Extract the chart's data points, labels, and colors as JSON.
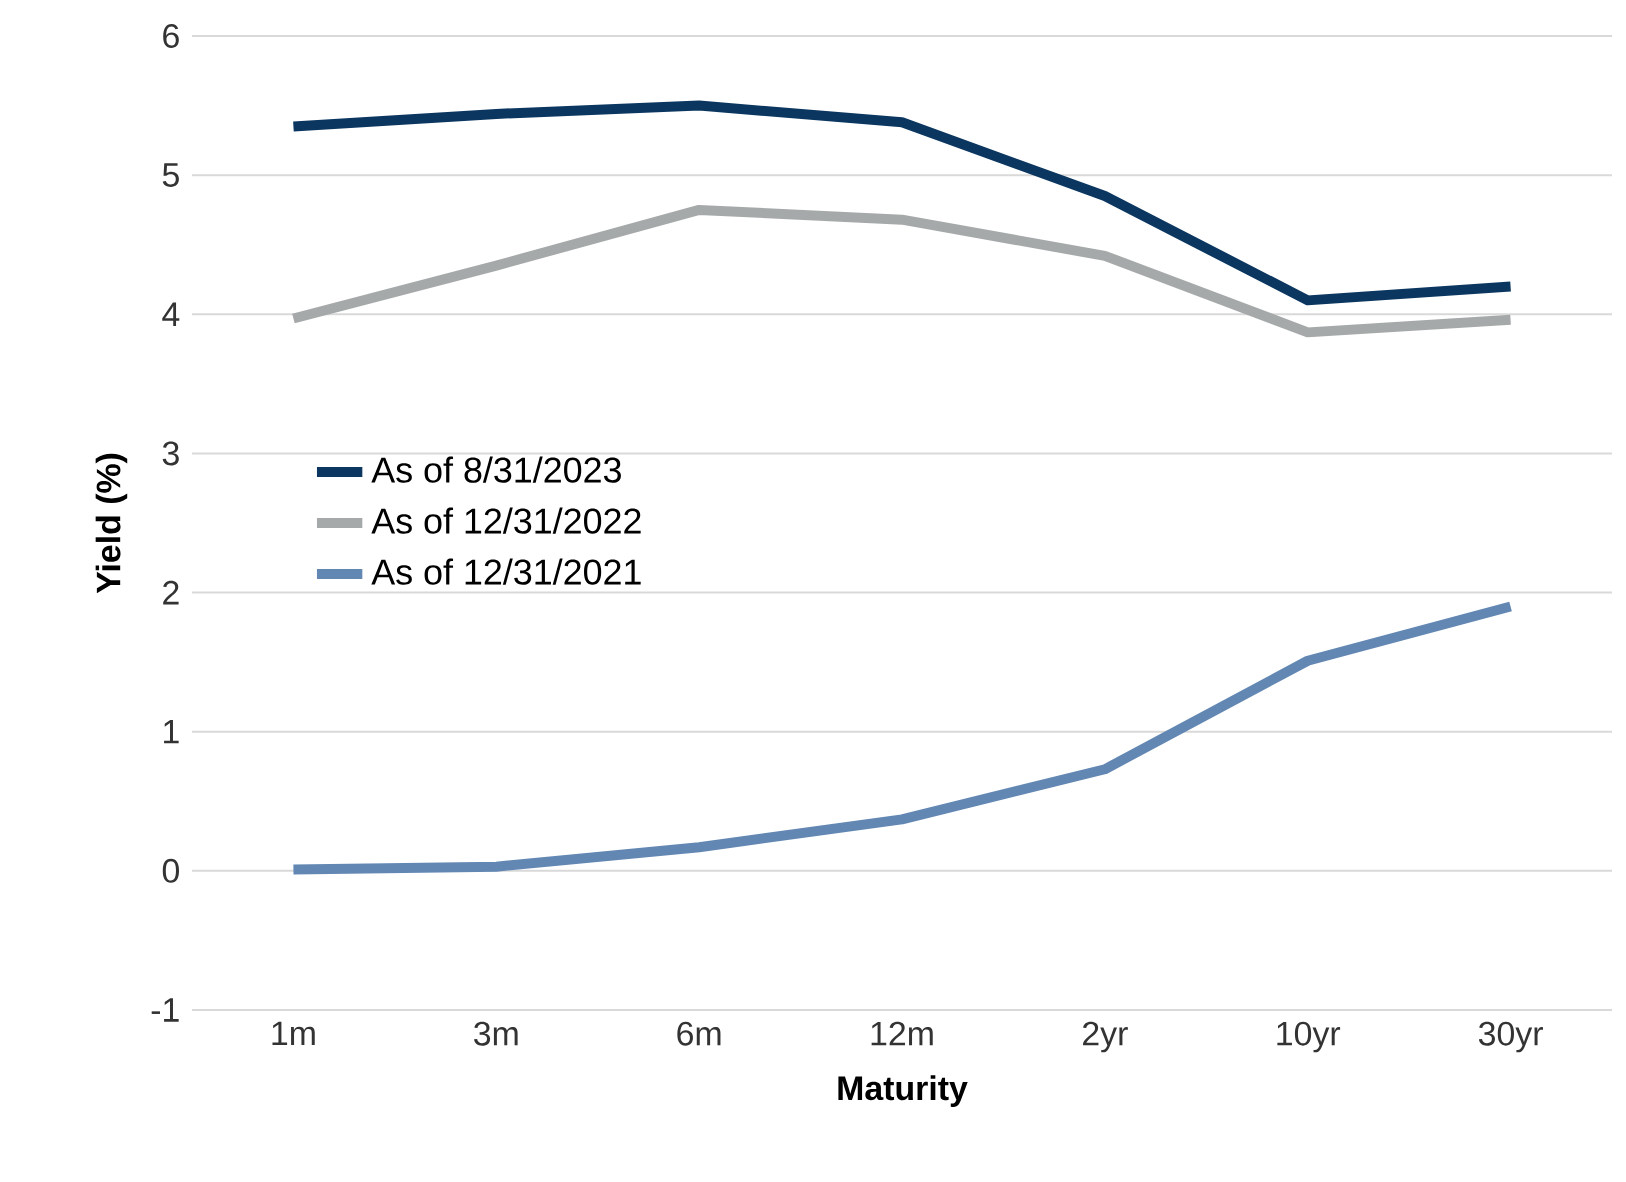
{
  "chart_data": {
    "type": "line",
    "xlabel": "Maturity",
    "ylabel": "Yield (%)",
    "categories": [
      "1m",
      "3m",
      "6m",
      "12m",
      "2yr",
      "10yr",
      "30yr"
    ],
    "series": [
      {
        "name": "As of 8/31/2023",
        "color": "#0b3660",
        "values": [
          5.35,
          5.44,
          5.5,
          5.38,
          4.85,
          4.1,
          4.2
        ]
      },
      {
        "name": "As of 12/31/2022",
        "color": "#a6a9aa",
        "values": [
          3.97,
          4.35,
          4.75,
          4.68,
          4.42,
          3.87,
          3.96
        ]
      },
      {
        "name": "As of 12/31/2021",
        "color": "#6287b3",
        "values": [
          0.01,
          0.03,
          0.17,
          0.37,
          0.73,
          1.51,
          1.9
        ]
      }
    ],
    "ylim": [
      -1,
      6
    ],
    "yticks": [
      -1,
      0,
      1,
      2,
      3,
      4,
      5,
      6
    ],
    "grid": "y",
    "legend": "left",
    "marker": "none",
    "line_style": "solid"
  }
}
